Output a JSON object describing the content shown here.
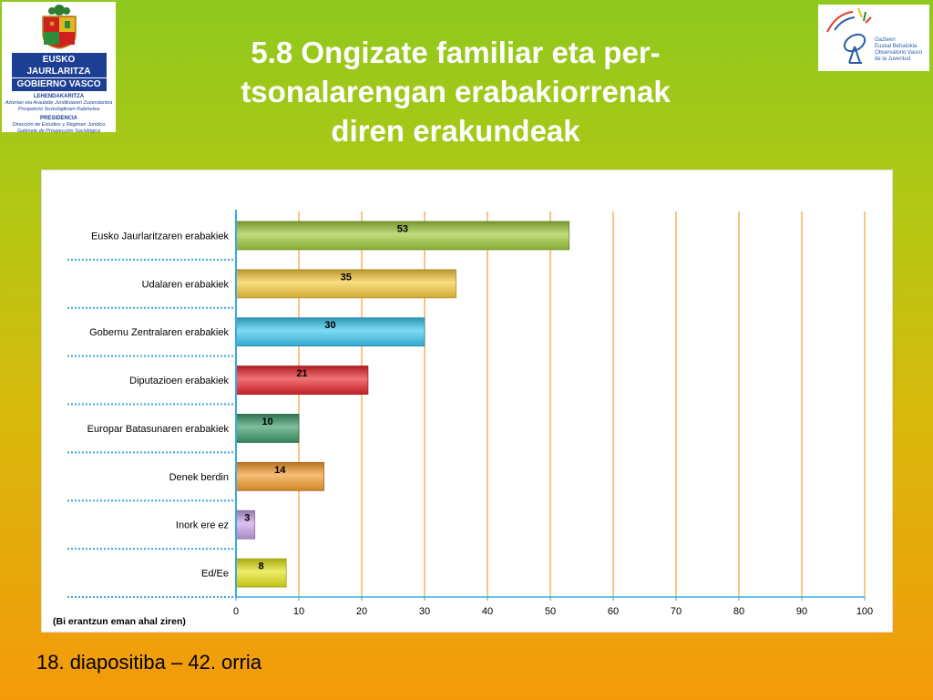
{
  "header": {
    "title": "5.8 Ongizate familiar eta per- tsonalarengan erabakiorrenak diren erakundeak",
    "title_lines": [
      "5.8 Ongizate familiar eta per-",
      "tsonalarengan erabakiorrenak",
      "diren erakundeak"
    ]
  },
  "logo_left": {
    "line1": "EUSKO JAURLARITZA",
    "line2": "GOBIERNO VASCO",
    "dept1": "LEHENDAKARITZA",
    "dept1_sub1": "Azterlan eta Araubide Juridikoaren Zuzendaritza",
    "dept1_sub2": "Prospekzio Soziologikoen Kabinetea",
    "dept2": "PRESIDENCIA",
    "dept2_sub1": "Dirección de Estudios y Régimen Jurídico",
    "dept2_sub2": "Gabinete de Prospección Sociológica"
  },
  "logo_right": {
    "line1": "Gazteen",
    "line2": "Euskal Behatokia",
    "line3": "Observatorio Vasco",
    "line4": "de la Juventud"
  },
  "chart_data": {
    "type": "bar",
    "orientation": "horizontal",
    "categories": [
      "Eusko Jaurlaritzaren erabakiek",
      "Udalaren erabakiek",
      "Gobernu Zentralaren erabakiek",
      "Diputazioen erabakiek",
      "Europar Batasunaren erabakiek",
      "Denek berdin",
      "Inork ere ez",
      "Ed/Ee"
    ],
    "values": [
      53,
      35,
      30,
      21,
      10,
      14,
      3,
      8
    ],
    "colors": [
      "#9dc83a",
      "#f5c93c",
      "#3cc6f0",
      "#e8262c",
      "#3c9a6a",
      "#f39a2c",
      "#c9a0e6",
      "#e3e31a"
    ],
    "xlim": [
      0,
      100
    ],
    "xticks": [
      0,
      10,
      20,
      30,
      40,
      50,
      60,
      70,
      80,
      90,
      100
    ],
    "grid": true,
    "grid_color": "#f0a030",
    "note": "(Bi erantzun eman ahal ziren)"
  },
  "footer": {
    "text": "18. diapositiba – 42. orria"
  }
}
